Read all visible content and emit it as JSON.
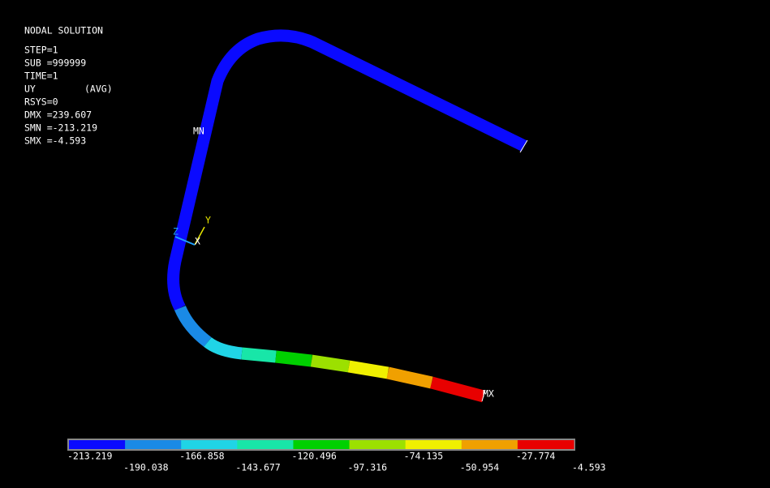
{
  "info": {
    "title": "NODAL SOLUTION",
    "step": "STEP=1",
    "sub": "SUB =999999",
    "time": "TIME=1",
    "quantity": "UY",
    "avg": "(AVG)",
    "rsys": "RSYS=0",
    "dmx": "DMX =239.607",
    "smn": "SMN =-213.219",
    "smx": "SMX =-4.593"
  },
  "markers": {
    "min": "MN",
    "max": "MX"
  },
  "triad": {
    "x": "X",
    "y": "Y",
    "z": "Z"
  },
  "legend": {
    "colors": [
      "#0a0aff",
      "#1a8ae6",
      "#20d4e6",
      "#18e6a8",
      "#00d000",
      "#9ce000",
      "#f0f000",
      "#f0a000",
      "#e80000"
    ],
    "labels": [
      "-213.219",
      "-190.038",
      "-166.858",
      "-143.677",
      "-120.496",
      "-97.316",
      "-74.135",
      "-50.954",
      "-27.774",
      "-4.593"
    ]
  }
}
